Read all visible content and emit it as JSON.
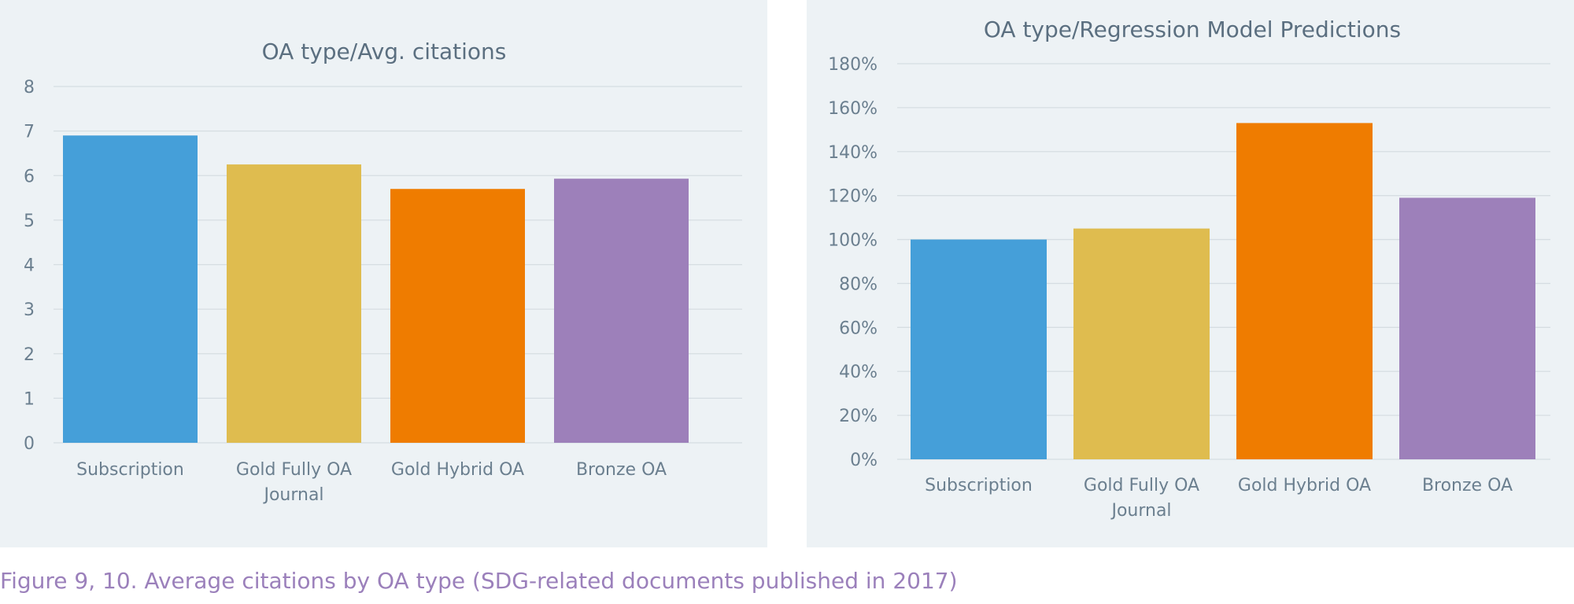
{
  "chart_data": [
    {
      "type": "bar",
      "title": "OA type/Avg. citations",
      "categories": [
        [
          "Subscription"
        ],
        [
          "Gold Fully OA",
          "Journal"
        ],
        [
          "Gold Hybrid OA"
        ],
        [
          "Bronze OA"
        ]
      ],
      "values": [
        6.9,
        6.25,
        5.7,
        5.93
      ],
      "colors": [
        "#459fd9",
        "#dfbc4f",
        "#ef7c00",
        "#9d80ba"
      ],
      "ylim": [
        0,
        8
      ],
      "yticks": [
        "0",
        "1",
        "2",
        "3",
        "4",
        "5",
        "6",
        "7",
        "8"
      ],
      "grid": true
    },
    {
      "type": "bar",
      "title": "OA type/Regression Model Predictions",
      "categories": [
        [
          "Subscription"
        ],
        [
          "Gold Fully OA",
          "Journal"
        ],
        [
          "Gold Hybrid OA"
        ],
        [
          "Bronze OA"
        ]
      ],
      "values": [
        1.0,
        1.05,
        1.53,
        1.19
      ],
      "colors": [
        "#459fd9",
        "#dfbc4f",
        "#ef7c00",
        "#9d80ba"
      ],
      "ylim": [
        0,
        1.8
      ],
      "yticks": [
        "0%",
        "20%",
        "40%",
        "60%",
        "80%",
        "100%",
        "120%",
        "140%",
        "160%",
        "180%"
      ],
      "grid": true
    }
  ],
  "caption": "Figure 9, 10. Average citations by OA type (SDG-related documents published in 2017)"
}
